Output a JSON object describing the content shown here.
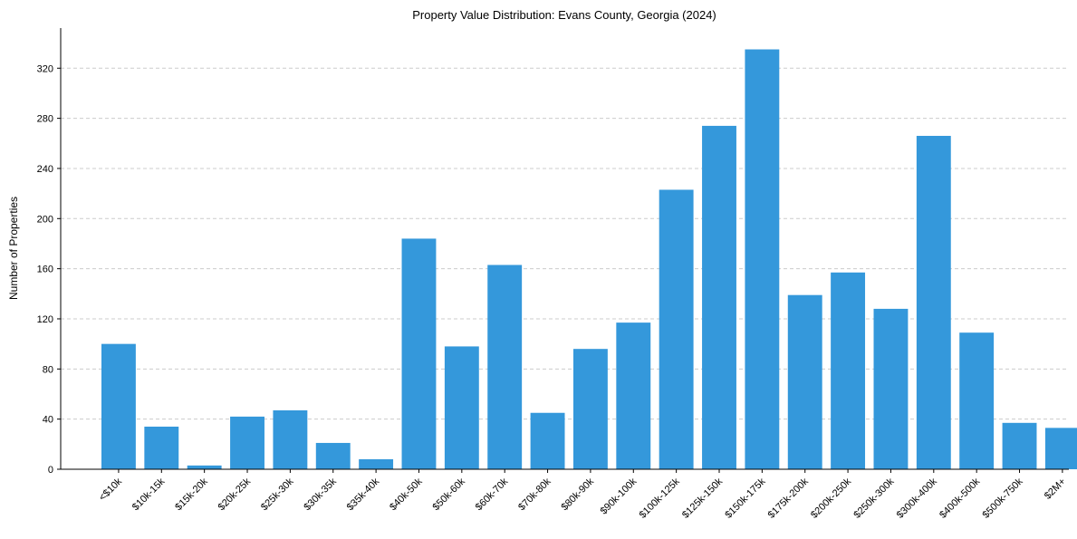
{
  "chart_data": {
    "type": "bar",
    "title": "Property Value Distribution: Evans County, Georgia (2024)",
    "xlabel": "",
    "ylabel": "Number of Properties",
    "categories": [
      "<$10k",
      "$10k-15k",
      "$15k-20k",
      "$20k-25k",
      "$25k-30k",
      "$30k-35k",
      "$35k-40k",
      "$40k-50k",
      "$50k-60k",
      "$60k-70k",
      "$70k-80k",
      "$80k-90k",
      "$90k-100k",
      "$100k-125k",
      "$125k-150k",
      "$150k-175k",
      "$175k-200k",
      "$200k-250k",
      "$250k-300k",
      "$300k-400k",
      "$400k-500k",
      "$500k-750k",
      "$2M+"
    ],
    "values": [
      100,
      34,
      3,
      42,
      47,
      21,
      8,
      184,
      98,
      163,
      45,
      96,
      117,
      223,
      274,
      335,
      139,
      157,
      128,
      266,
      109,
      37,
      33
    ],
    "ylim": [
      0,
      352
    ],
    "yticks": [
      0,
      40,
      80,
      120,
      160,
      200,
      240,
      280,
      320
    ],
    "grid": true,
    "bar_color": "#3498db",
    "legend": "none"
  }
}
